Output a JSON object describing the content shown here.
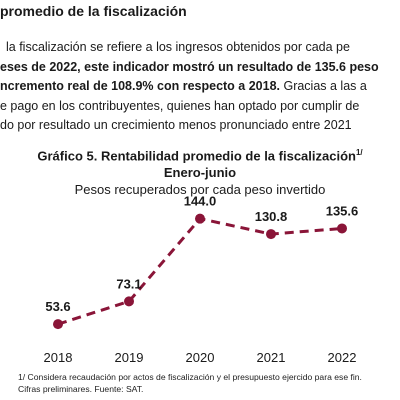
{
  "section_heading": "promedio de la fiscalización",
  "paragraph": {
    "line1": "la fiscalización se refiere a los ingresos obtenidos por cada pe",
    "line2_bold": "eses de 2022, este indicador mostró un resultado de 135.6 peso",
    "line3_bold": "ncremento real de 108.9% con respecto a 2018.",
    "line3_rest": " Gracias a las a",
    "line4": "e pago en los contribuyentes, quienes han optado por cumplir de",
    "line5": "do por resultado un crecimiento menos pronunciado entre 2021"
  },
  "chart_data": {
    "type": "line",
    "title": "Gráfico 5. Rentabilidad promedio de la fiscalización",
    "title_superscript": "1/",
    "period": "Enero-junio",
    "subtitle": "Pesos recuperados por cada peso invertido",
    "categories": [
      "2018",
      "2019",
      "2020",
      "2021",
      "2022"
    ],
    "values": [
      53.6,
      73.1,
      144.0,
      130.8,
      135.6
    ],
    "data_labels": [
      "53.6",
      "73.1",
      "144.0",
      "130.8",
      "135.6"
    ],
    "ylim": [
      40,
      160
    ],
    "line_style": "dashed",
    "colors": {
      "line": "#8a1538",
      "marker": "#8a1538"
    }
  },
  "footnotes": {
    "line1": "1/ Considera recaudación por actos de fiscalización y el presupuesto ejercido para ese fin.",
    "line2": "Cifras preliminares. Fuente: SAT."
  }
}
